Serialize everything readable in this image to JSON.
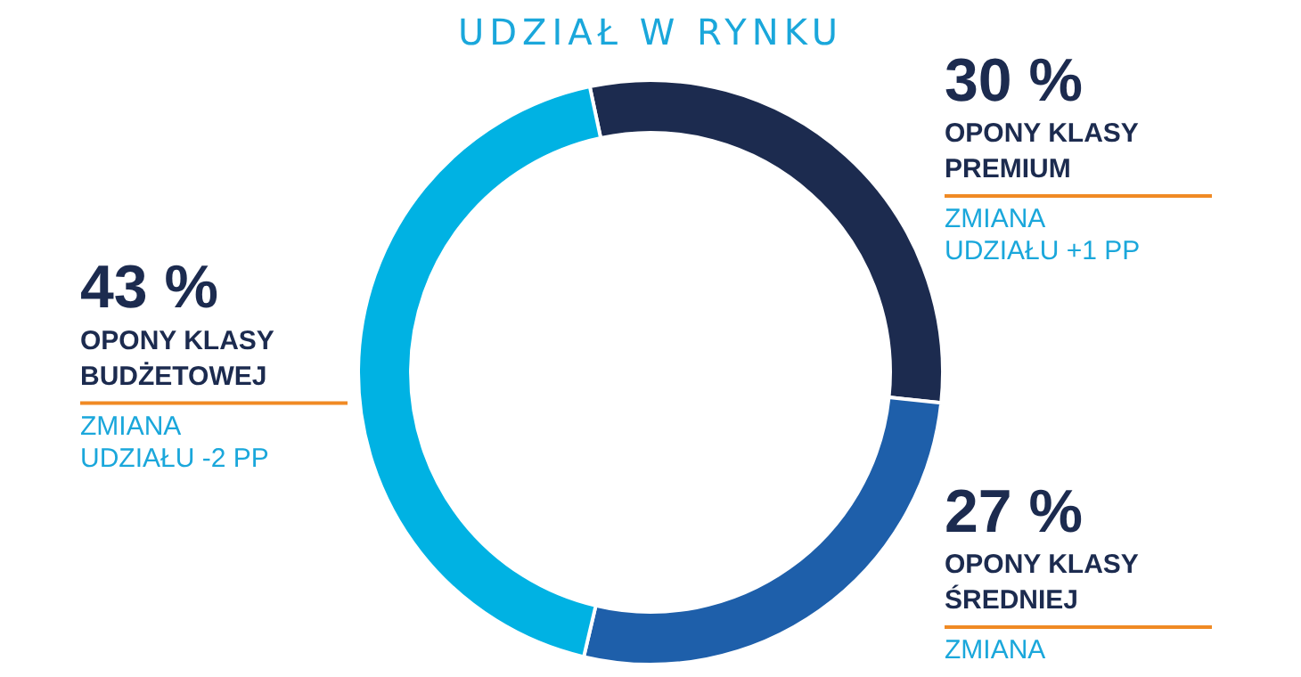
{
  "chart_data": {
    "type": "donut",
    "title": "UDZIAŁ W RYNKU",
    "categories": [
      "OPONY KLASY PREMIUM",
      "OPONY KLASY ŚREDNIEJ",
      "OPONY KLASY BUDŻETOWEJ"
    ],
    "values": [
      30,
      27,
      43
    ],
    "value_labels": [
      "30 %",
      "27 %",
      "43 %"
    ],
    "colors": [
      "#1c2b4f",
      "#1e5faa",
      "#00b2e3"
    ],
    "annotations": [
      "ZMIANA UDZIAŁU +1 PP",
      "ZMIANA",
      "ZMIANA UDZIAŁU -2 PP"
    ],
    "legend": false
  }
}
